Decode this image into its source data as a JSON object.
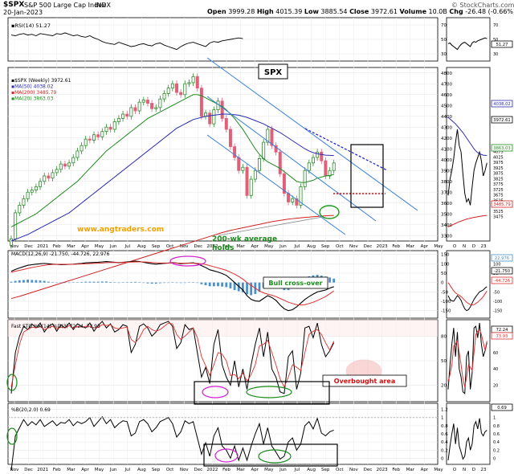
{
  "header": {
    "symbol": "$SPX",
    "name": "S&P 500 Large Cap Index",
    "exchange": "INDX",
    "date": "20-Jan-2023",
    "open_label": "Open",
    "open": "3999.28",
    "high_label": "High",
    "high": "4015.39",
    "low_label": "Low",
    "low": "3885.54",
    "close_label": "Close",
    "close": "3972.61",
    "volume_label": "Volume",
    "volume": "10.0B",
    "chg_label": "Chg",
    "chg": "-26.48 (-0.66%)",
    "source": "© StockCharts.com"
  },
  "colors": {
    "up": "#2e8b2e",
    "down": "#e0607a",
    "ma50": "#2b2bb0",
    "ma200": "#d02020",
    "ma20": "#208a20",
    "channel": "#3a7fd8",
    "macd_hist": "#4a90c8",
    "accent": "#f0a000"
  },
  "annotations": {
    "spx_box": "SPX",
    "website": "www.angtraders.com",
    "ma200_note": "200-wk average\nholds",
    "bull_cross": "Bull cross-over",
    "overbought": "Overbought area"
  },
  "chart_data": [
    {
      "panel": "rsi",
      "type": "line",
      "label": "RSI(14) 51.27",
      "y_ticks": [
        30,
        50,
        70
      ],
      "side_ticks": [
        30,
        50,
        70
      ],
      "side_value": "51.27",
      "values": [
        56,
        55,
        57,
        58,
        56,
        57,
        55,
        58,
        57,
        56,
        55,
        58,
        57,
        59,
        57,
        55,
        56,
        54,
        53,
        55,
        52,
        50,
        47,
        45,
        44,
        43,
        46,
        44,
        42,
        40,
        41,
        43,
        44,
        42,
        41,
        44,
        45,
        42,
        40,
        38,
        36,
        40,
        43,
        45,
        46,
        44,
        42,
        40,
        45,
        47,
        46,
        48,
        49,
        50,
        51,
        52,
        51
      ]
    },
    {
      "panel": "price",
      "type": "candlestick",
      "legend": [
        "$SPX (Weekly) 3972.61",
        "MA(50) 4038.02",
        "MA(200) 3485.79",
        "MA(20) 3863.03"
      ],
      "y_ticks": [
        3300,
        3400,
        3500,
        3600,
        3700,
        3800,
        3900,
        4000,
        4100,
        4200,
        4300,
        4400,
        4500,
        4600,
        4700,
        4800
      ],
      "ylim": [
        3250,
        4850
      ],
      "x_labels": [
        "Nov",
        "Dec",
        "2021",
        "Feb",
        "Mar",
        "Apr",
        "May",
        "Jun",
        "Jul",
        "Aug",
        "Sep",
        "Oct",
        "Nov",
        "Dec",
        "2022",
        "Feb",
        "Mar",
        "Apr",
        "May",
        "Jun",
        "Jul",
        "Aug",
        "Sep",
        "Oct",
        "Nov",
        "Dec",
        "2023",
        "Feb",
        "Mar",
        "Apr",
        "May"
      ],
      "closes": [
        3270,
        3510,
        3580,
        3640,
        3700,
        3720,
        3750,
        3800,
        3850,
        3830,
        3880,
        3910,
        3960,
        3940,
        3970,
        4020,
        4080,
        4130,
        4190,
        4180,
        4230,
        4210,
        4260,
        4300,
        4280,
        4350,
        4380,
        4420,
        4400,
        4480,
        4450,
        4530,
        4550,
        4520,
        4470,
        4480,
        4560,
        4610,
        4660,
        4700,
        4620,
        4600,
        4700,
        4710,
        4766,
        4660,
        4400,
        4430,
        4330,
        4460,
        4540,
        4380,
        4280,
        4120,
        4020,
        3900,
        3930,
        3670,
        3820,
        3900,
        4010,
        4160,
        4280,
        4130,
        4070,
        3870,
        3690,
        3610,
        3640,
        3580,
        3750,
        3900,
        3970,
        4020,
        4070,
        3990,
        3850,
        3900,
        3970
      ],
      "ma50": [
        3250,
        3265,
        3280,
        3295,
        3310,
        3330,
        3350,
        3370,
        3390,
        3410,
        3430,
        3450,
        3470,
        3490,
        3510,
        3540,
        3570,
        3600,
        3630,
        3660,
        3690,
        3720,
        3750,
        3780,
        3810,
        3840,
        3870,
        3900,
        3930,
        3960,
        3990,
        4020,
        4050,
        4080,
        4110,
        4140,
        4170,
        4200,
        4230,
        4260,
        4290,
        4310,
        4330,
        4350,
        4370,
        4380,
        4390,
        4400,
        4405,
        4410,
        4415,
        4420,
        4420,
        4418,
        4415,
        4410,
        4400,
        4390,
        4375,
        4360,
        4345,
        4330,
        4310,
        4290,
        4270,
        4250,
        4225,
        4200,
        4175,
        4150,
        4125,
        4100,
        4080,
        4065,
        4055,
        4048,
        4042,
        4040,
        4038
      ],
      "ma20": [
        3380,
        3400,
        3420,
        3440,
        3460,
        3480,
        3500,
        3530,
        3560,
        3590,
        3620,
        3650,
        3680,
        3710,
        3740,
        3770,
        3800,
        3840,
        3880,
        3920,
        3960,
        4000,
        4040,
        4080,
        4110,
        4140,
        4170,
        4200,
        4230,
        4260,
        4290,
        4320,
        4350,
        4380,
        4400,
        4420,
        4440,
        4460,
        4480,
        4500,
        4520,
        4540,
        4560,
        4580,
        4600,
        4600,
        4590,
        4570,
        4550,
        4530,
        4510,
        4490,
        4460,
        4420,
        4380,
        4330,
        4280,
        4220,
        4160,
        4100,
        4050,
        4010,
        3980,
        3960,
        3940,
        3920,
        3890,
        3860,
        3830,
        3800,
        3790,
        3790,
        3800,
        3810,
        3830,
        3840,
        3850,
        3855,
        3863
      ],
      "ma200": [
        2720,
        2730,
        2740,
        2752,
        2764,
        2776,
        2788,
        2800,
        2812,
        2824,
        2836,
        2848,
        2860,
        2872,
        2884,
        2896,
        2908,
        2920,
        2932,
        2944,
        2956,
        2968,
        2980,
        2992,
        3004,
        3016,
        3028,
        3040,
        3052,
        3064,
        3076,
        3088,
        3100,
        3112,
        3124,
        3136,
        3148,
        3160,
        3172,
        3184,
        3196,
        3208,
        3220,
        3232,
        3244,
        3256,
        3268,
        3280,
        3292,
        3304,
        3316,
        3328,
        3338,
        3348,
        3356,
        3364,
        3372,
        3380,
        3388,
        3396,
        3404,
        3412,
        3420,
        3428,
        3434,
        3440,
        3446,
        3452,
        3456,
        3460,
        3464,
        3468,
        3470,
        3474,
        3477,
        3480,
        3482,
        3484,
        3486
      ],
      "side_ticks": [
        3475,
        3500,
        3525,
        3550,
        3575,
        3600,
        3625,
        3650,
        3675,
        3700,
        3725,
        3750,
        3775,
        3800,
        3825,
        3850,
        3875,
        3900,
        3925,
        3950,
        3975,
        4000,
        4025,
        4050,
        4075,
        4100,
        4125
      ],
      "side_values": [
        "4038.02",
        "3972.61",
        "3863.03",
        "3485.79"
      ],
      "side_x_labels": [
        "O",
        "N",
        "D",
        "23"
      ]
    },
    {
      "panel": "macd",
      "type": "line+bar",
      "label": "MACD(12,26,9) -21.750, -44.726, 22.976",
      "y_ticks": [
        150,
        100,
        50,
        0,
        -50,
        -100,
        -150
      ],
      "side_ticks": [
        100,
        50,
        0,
        -50,
        -100,
        -150
      ],
      "side_values": [
        "22.976",
        "-21.750",
        "-44.726"
      ],
      "macd": [
        60,
        70,
        78,
        85,
        92,
        95,
        98,
        100,
        102,
        100,
        98,
        97,
        95,
        96,
        97,
        98,
        100,
        102,
        105,
        106,
        107,
        108,
        110,
        112,
        110,
        108,
        106,
        108,
        110,
        112,
        114,
        112,
        108,
        104,
        100,
        98,
        100,
        102,
        104,
        106,
        104,
        100,
        102,
        104,
        105,
        100,
        90,
        80,
        68,
        62,
        56,
        48,
        38,
        20,
        0,
        -20,
        -40,
        -70,
        -90,
        -98,
        -100,
        -85,
        -70,
        -80,
        -95,
        -120,
        -140,
        -150,
        -145,
        -130,
        -110,
        -90,
        -75,
        -62,
        -50,
        -45,
        -40,
        -30,
        -22
      ],
      "signal": [
        55,
        60,
        65,
        70,
        75,
        80,
        84,
        88,
        92,
        95,
        96,
        97,
        97,
        97,
        97,
        97,
        98,
        99,
        100,
        101,
        102,
        103,
        104,
        106,
        107,
        107,
        107,
        107,
        108,
        109,
        110,
        110,
        110,
        109,
        107,
        105,
        104,
        104,
        104,
        104,
        104,
        103,
        103,
        103,
        103,
        102,
        100,
        96,
        90,
        84,
        78,
        72,
        65,
        55,
        45,
        32,
        18,
        0,
        -15,
        -30,
        -45,
        -55,
        -62,
        -68,
        -75,
        -85,
        -95,
        -105,
        -112,
        -118,
        -120,
        -118,
        -112,
        -105,
        -96,
        -86,
        -75,
        -60,
        -45
      ]
    },
    {
      "panel": "fast_sto",
      "type": "line",
      "label": "Fast STO %K(14) %D(3) 72.24, 73.93",
      "y_ticks": [
        80,
        50,
        20
      ],
      "side_ticks": [
        20,
        40,
        60,
        80
      ],
      "side_values": [
        "72.24",
        "73.93"
      ],
      "k": [
        10,
        60,
        80,
        92,
        88,
        95,
        90,
        96,
        85,
        92,
        95,
        86,
        94,
        90,
        96,
        88,
        95,
        92,
        90,
        96,
        86,
        93,
        98,
        90,
        95,
        85,
        88,
        94,
        92,
        60,
        70,
        92,
        95,
        90,
        80,
        85,
        94,
        96,
        98,
        92,
        65,
        72,
        94,
        88,
        90,
        60,
        30,
        42,
        22,
        70,
        88,
        45,
        30,
        20,
        50,
        18,
        40,
        15,
        45,
        70,
        90,
        55,
        85,
        40,
        30,
        12,
        10,
        55,
        62,
        15,
        35,
        90,
        92,
        78,
        96,
        70,
        55,
        62,
        72
      ],
      "d": [
        18,
        45,
        70,
        85,
        88,
        91,
        90,
        92,
        88,
        90,
        92,
        89,
        91,
        90,
        93,
        90,
        92,
        91,
        92,
        92,
        90,
        91,
        94,
        93,
        94,
        90,
        89,
        90,
        91,
        76,
        72,
        78,
        88,
        92,
        88,
        86,
        88,
        92,
        96,
        95,
        82,
        76,
        80,
        85,
        90,
        78,
        55,
        44,
        32,
        45,
        60,
        58,
        50,
        32,
        33,
        28,
        35,
        25,
        33,
        45,
        68,
        70,
        75,
        60,
        45,
        28,
        18,
        30,
        45,
        42,
        38,
        60,
        82,
        86,
        88,
        82,
        72,
        63,
        74
      ]
    },
    {
      "panel": "pctb",
      "type": "line",
      "label": "%B(20,2.0) 0.69",
      "y_ticks": [
        1.2,
        1.0,
        0.8,
        0.6,
        0.4,
        0.2,
        0.0
      ],
      "side_ticks": [
        0.0,
        0.2,
        0.4,
        0.6,
        0.8,
        1.0
      ],
      "side_value": "0.69",
      "values": [
        -0.3,
        0.55,
        0.75,
        0.95,
        0.8,
        0.9,
        0.82,
        0.95,
        0.78,
        0.85,
        0.92,
        0.8,
        0.88,
        0.86,
        0.95,
        0.8,
        0.9,
        0.85,
        0.9,
        1.0,
        0.78,
        0.9,
        1.02,
        0.85,
        0.95,
        0.75,
        0.85,
        0.92,
        0.9,
        0.55,
        0.62,
        0.9,
        0.95,
        0.85,
        0.65,
        0.75,
        0.9,
        0.95,
        1.0,
        0.85,
        0.52,
        0.65,
        0.92,
        0.85,
        0.9,
        0.5,
        0.1,
        0.38,
        0.05,
        0.55,
        0.75,
        0.3,
        0.2,
        0.0,
        0.3,
        -0.05,
        0.25,
        -0.05,
        0.3,
        0.6,
        0.85,
        0.35,
        0.75,
        0.3,
        0.15,
        -0.02,
        0.05,
        0.4,
        0.5,
        0.2,
        0.35,
        0.8,
        0.9,
        0.72,
        0.98,
        0.62,
        0.55,
        0.65,
        0.69
      ]
    }
  ]
}
